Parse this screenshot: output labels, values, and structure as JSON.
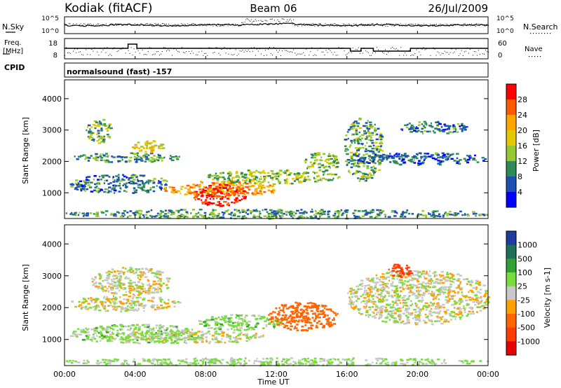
{
  "header": {
    "station": "Kodiak (fitACF)",
    "beam": "Beam 06",
    "date": "26/Jul/2009"
  },
  "top_panels": {
    "nsky_label": "N.Sky",
    "nsearch_label": "N.Search",
    "freq_label_1": "Freq.",
    "freq_label_2": "[MHz]",
    "nave_label": "Nave",
    "cpid_label": "CPID",
    "cpid_text": "normalsound (fast) -157",
    "noise_ticks_left": [
      "10^5",
      "10^0"
    ],
    "noise_ticks_right": [
      "10^5",
      "10^0"
    ],
    "freq_ticks": [
      "18",
      "8"
    ],
    "nave_ticks": [
      "60",
      "0"
    ]
  },
  "power_colorbar": {
    "label": "Power [dB]",
    "ticks": [
      "28",
      "24",
      "20",
      "16",
      "12",
      "8",
      "4"
    ],
    "colors": [
      "#ff0000",
      "#ff5a00",
      "#ffa500",
      "#e6c800",
      "#96c832",
      "#2e8b57",
      "#1e50b4",
      "#0000ff"
    ]
  },
  "velocity_colorbar": {
    "label": "Velocity [m s-1]",
    "ticks": [
      "1000",
      "500",
      "100",
      "25",
      "-25",
      "-100",
      "-500",
      "-1000"
    ],
    "colors": [
      "#1e3ca0",
      "#1e6e5a",
      "#32a032",
      "#78dc3c",
      "#c8c8c8",
      "#ffa000",
      "#ff6400",
      "#ff3c00",
      "#e60000"
    ]
  },
  "chart_data": [
    {
      "type": "heatmap",
      "name": "power",
      "title": "",
      "xlabel": "",
      "ylabel": "Slant Range [km]",
      "x_ticks": [
        "00:00",
        "04:00",
        "08:00",
        "12:00",
        "16:00",
        "20:00",
        "00:00"
      ],
      "y_ticks": [
        "1000",
        "2000",
        "3000",
        "4000"
      ],
      "ylim": [
        180,
        4600
      ],
      "value_unit": "dB",
      "regions": [
        {
          "t": [
            0.5,
            6.5
          ],
          "r": [
            2000,
            2300
          ],
          "level": 10
        },
        {
          "t": [
            1.2,
            2.6
          ],
          "r": [
            2600,
            3400
          ],
          "level": 12
        },
        {
          "t": [
            3.8,
            5.6
          ],
          "r": [
            2300,
            2700
          ],
          "level": 18
        },
        {
          "t": [
            0.2,
            6.0
          ],
          "r": [
            1000,
            1600
          ],
          "level": 8
        },
        {
          "t": [
            5.5,
            12.0
          ],
          "r": [
            900,
            1400
          ],
          "level": 22
        },
        {
          "t": [
            7.2,
            10.2
          ],
          "r": [
            600,
            1300
          ],
          "level": 30
        },
        {
          "t": [
            8.0,
            15.5
          ],
          "r": [
            1300,
            1750
          ],
          "level": 14
        },
        {
          "t": [
            13.5,
            15.5
          ],
          "r": [
            1700,
            2300
          ],
          "level": 14
        },
        {
          "t": [
            15.8,
            18.0
          ],
          "r": [
            1400,
            3400
          ],
          "level": 12
        },
        {
          "t": [
            16.5,
            23.8
          ],
          "r": [
            1900,
            2300
          ],
          "level": 7
        },
        {
          "t": [
            19.0,
            22.8
          ],
          "r": [
            2900,
            3300
          ],
          "level": 8
        },
        {
          "t": [
            0.0,
            24.0
          ],
          "r": [
            200,
            500
          ],
          "level": 10
        }
      ]
    },
    {
      "type": "heatmap",
      "name": "velocity",
      "title": "",
      "xlabel": "Time UT",
      "ylabel": "Slant Range [km]",
      "x_ticks": [
        "00:00",
        "04:00",
        "08:00",
        "12:00",
        "16:00",
        "20:00",
        "00:00"
      ],
      "y_ticks": [
        "1000",
        "2000",
        "3000",
        "4000"
      ],
      "ylim": [
        180,
        4600
      ],
      "value_unit": "m s-1",
      "regions": [
        {
          "t": [
            0.3,
            6.5
          ],
          "r": [
            1900,
            2400
          ],
          "level": 0
        },
        {
          "t": [
            1.5,
            6.0
          ],
          "r": [
            2400,
            3300
          ],
          "level": 0
        },
        {
          "t": [
            2.0,
            11.5
          ],
          "r": [
            900,
            1300
          ],
          "level": 0
        },
        {
          "t": [
            0.3,
            7.5
          ],
          "r": [
            900,
            1500
          ],
          "level": 50
        },
        {
          "t": [
            7.5,
            12.5
          ],
          "r": [
            1300,
            1800
          ],
          "level": 60
        },
        {
          "t": [
            11.5,
            15.5
          ],
          "r": [
            1300,
            2200
          ],
          "level": -200
        },
        {
          "t": [
            16.0,
            24.0
          ],
          "r": [
            1500,
            3200
          ],
          "level": 0
        },
        {
          "t": [
            18.3,
            19.6
          ],
          "r": [
            2900,
            3400
          ],
          "level": -900
        },
        {
          "t": [
            0.0,
            24.0
          ],
          "r": [
            200,
            450
          ],
          "level": 40
        }
      ]
    }
  ]
}
